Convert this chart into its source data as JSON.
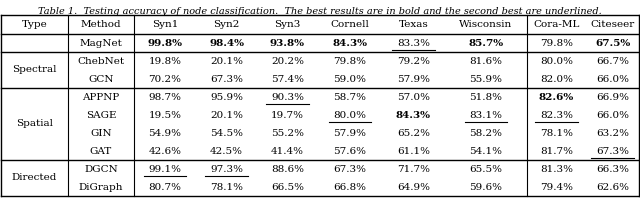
{
  "title": "Table 1.  Testing accuracy of node classification.  The best results are in bold and the second best are underlined.",
  "columns": [
    "Type",
    "Method",
    "Syn1",
    "Syn2",
    "Syn3",
    "Cornell",
    "Texas",
    "Wisconsin",
    "Cora-ML",
    "Citeseer"
  ],
  "rows": [
    {
      "type": "",
      "method": "MagNet",
      "values": [
        "99.8%",
        "98.4%",
        "93.8%",
        "84.3%",
        "83.3%",
        "85.7%",
        "79.8%",
        "67.5%"
      ],
      "bold": [
        true,
        true,
        true,
        true,
        false,
        true,
        false,
        true
      ],
      "underline": [
        false,
        false,
        false,
        false,
        true,
        false,
        false,
        false
      ]
    },
    {
      "type": "Spectral",
      "method": "ChebNet",
      "values": [
        "19.8%",
        "20.1%",
        "20.2%",
        "79.8%",
        "79.2%",
        "81.6%",
        "80.0%",
        "66.7%"
      ],
      "bold": [
        false,
        false,
        false,
        false,
        false,
        false,
        false,
        false
      ],
      "underline": [
        false,
        false,
        false,
        false,
        false,
        false,
        false,
        false
      ]
    },
    {
      "type": "",
      "method": "GCN",
      "values": [
        "70.2%",
        "67.3%",
        "57.4%",
        "59.0%",
        "57.9%",
        "55.9%",
        "82.0%",
        "66.0%"
      ],
      "bold": [
        false,
        false,
        false,
        false,
        false,
        false,
        false,
        false
      ],
      "underline": [
        false,
        false,
        false,
        false,
        false,
        false,
        false,
        false
      ]
    },
    {
      "type": "Spatial",
      "method": "APPNP",
      "values": [
        "98.7%",
        "95.9%",
        "90.3%",
        "58.7%",
        "57.0%",
        "51.8%",
        "82.6%",
        "66.9%"
      ],
      "bold": [
        false,
        false,
        false,
        false,
        false,
        false,
        true,
        false
      ],
      "underline": [
        false,
        false,
        true,
        false,
        false,
        false,
        false,
        false
      ]
    },
    {
      "type": "",
      "method": "SAGE",
      "values": [
        "19.5%",
        "20.1%",
        "19.7%",
        "80.0%",
        "84.3%",
        "83.1%",
        "82.3%",
        "66.0%"
      ],
      "bold": [
        false,
        false,
        false,
        false,
        true,
        false,
        false,
        false
      ],
      "underline": [
        false,
        false,
        false,
        true,
        false,
        true,
        true,
        false
      ]
    },
    {
      "type": "",
      "method": "GIN",
      "values": [
        "54.9%",
        "54.5%",
        "55.2%",
        "57.9%",
        "65.2%",
        "58.2%",
        "78.1%",
        "63.2%"
      ],
      "bold": [
        false,
        false,
        false,
        false,
        false,
        false,
        false,
        false
      ],
      "underline": [
        false,
        false,
        false,
        false,
        false,
        false,
        false,
        false
      ]
    },
    {
      "type": "",
      "method": "GAT",
      "values": [
        "42.6%",
        "42.5%",
        "41.4%",
        "57.6%",
        "61.1%",
        "54.1%",
        "81.7%",
        "67.3%"
      ],
      "bold": [
        false,
        false,
        false,
        false,
        false,
        false,
        false,
        false
      ],
      "underline": [
        false,
        false,
        false,
        false,
        false,
        false,
        false,
        true
      ]
    },
    {
      "type": "Directed",
      "method": "DGCN",
      "values": [
        "99.1%",
        "97.3%",
        "88.6%",
        "67.3%",
        "71.7%",
        "65.5%",
        "81.3%",
        "66.3%"
      ],
      "bold": [
        false,
        false,
        false,
        false,
        false,
        false,
        false,
        false
      ],
      "underline": [
        true,
        true,
        false,
        false,
        false,
        false,
        false,
        false
      ]
    },
    {
      "type": "",
      "method": "DiGraph",
      "values": [
        "80.7%",
        "78.1%",
        "66.5%",
        "66.8%",
        "64.9%",
        "59.6%",
        "79.4%",
        "62.6%"
      ],
      "bold": [
        false,
        false,
        false,
        false,
        false,
        false,
        false,
        false
      ],
      "underline": [
        false,
        false,
        false,
        false,
        false,
        false,
        false,
        false
      ]
    }
  ],
  "fontsize": 7.5,
  "title_fontsize": 7.0
}
